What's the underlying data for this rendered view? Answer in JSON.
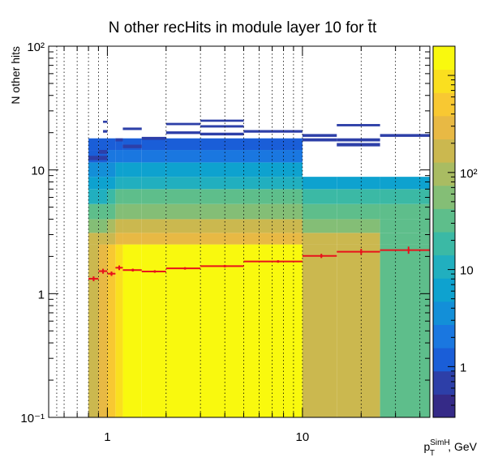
{
  "chart_data": {
    "type": "heatmap",
    "title": "N other recHits in module layer 10 for t̄t",
    "xlabel": "p_T^SimH, GeV",
    "ylabel": "N other hits",
    "x_scale": "log",
    "y_scale": "log",
    "z_scale": "log",
    "xlim": [
      0.5,
      45
    ],
    "ylim": [
      0.1,
      100
    ],
    "zlim": [
      0.3,
      2000
    ],
    "x_ticks": [
      {
        "value": 1,
        "label": "1"
      },
      {
        "value": 10,
        "label": "10"
      }
    ],
    "y_ticks": [
      {
        "value": 0.1,
        "label": "10⁻¹"
      },
      {
        "value": 1,
        "label": "1"
      },
      {
        "value": 10,
        "label": "10"
      },
      {
        "value": 100,
        "label": "10²"
      }
    ],
    "z_ticks": [
      {
        "value": 1,
        "label": "1"
      },
      {
        "value": 10,
        "label": "10"
      },
      {
        "value": 100,
        "label": "10²"
      }
    ],
    "x_gridlines": [
      0.55,
      0.6,
      0.7,
      0.8,
      0.9,
      1,
      2,
      3,
      4,
      5,
      6,
      7,
      8,
      9,
      10,
      20,
      30,
      40
    ],
    "x_bin_edges": [
      0.8,
      0.9,
      1.0,
      1.1,
      1.2,
      1.5,
      2.0,
      3.0,
      5.0,
      10.0,
      15.0,
      25.0,
      45.0
    ],
    "y_bands": [
      {
        "range": [
          0.1,
          2.5
        ],
        "z": [
          150,
          300,
          600,
          1000,
          1400,
          1500,
          1500,
          1500,
          1400,
          200,
          200,
          40
        ]
      },
      {
        "range": [
          2.5,
          3.1
        ],
        "z": [
          150,
          150,
          200,
          300,
          300,
          300,
          300,
          300,
          300,
          200,
          200,
          40
        ]
      },
      {
        "range": [
          3.1,
          4.0
        ],
        "z": [
          60,
          60,
          90,
          150,
          150,
          150,
          150,
          150,
          150,
          60,
          60,
          40
        ]
      },
      {
        "range": [
          4.0,
          5.3
        ],
        "z": [
          30,
          30,
          40,
          60,
          60,
          60,
          60,
          60,
          60,
          30,
          30,
          30
        ]
      },
      {
        "range": [
          5.3,
          7.0
        ],
        "z": [
          12,
          12,
          15,
          25,
          25,
          25,
          25,
          25,
          25,
          15,
          15,
          15
        ]
      },
      {
        "range": [
          7.0,
          8.8
        ],
        "z": [
          6,
          6,
          7,
          10,
          10,
          10,
          10,
          10,
          10,
          7,
          7,
          7
        ]
      },
      {
        "range": [
          8.8,
          11.5
        ],
        "z": [
          3,
          3,
          4,
          5,
          5,
          5,
          5,
          5,
          5,
          0,
          0,
          0
        ]
      },
      {
        "range": [
          11.5,
          14.5
        ],
        "z": [
          1.5,
          1.5,
          2,
          2.5,
          2.5,
          2.5,
          2.5,
          2.5,
          2.5,
          0,
          0,
          0
        ]
      },
      {
        "range": [
          14.5,
          18
        ],
        "z": [
          1,
          1,
          1.2,
          1.5,
          1.5,
          1.5,
          1.5,
          1.5,
          1.5,
          0,
          0,
          0
        ]
      }
    ],
    "sparse_bins": [
      {
        "x": [
          0.8,
          1.0
        ],
        "y": [
          12.0,
          13.0
        ],
        "z": 0.7
      },
      {
        "x": [
          0.9,
          1.0
        ],
        "y": [
          13.5,
          14.5
        ],
        "z": 0.7
      },
      {
        "x": [
          0.95,
          1.0
        ],
        "y": [
          24.0,
          25.0
        ],
        "z": 0.6
      },
      {
        "x": [
          0.95,
          1.0
        ],
        "y": [
          20.0,
          21.0
        ],
        "z": 0.6
      },
      {
        "x": [
          1.1,
          1.2
        ],
        "y": [
          17.0,
          18.0
        ],
        "z": 0.6
      },
      {
        "x": [
          1.2,
          1.5
        ],
        "y": [
          21.0,
          22.0
        ],
        "z": 0.6
      },
      {
        "x": [
          1.2,
          1.5
        ],
        "y": [
          15.0,
          16.0
        ],
        "z": 0.7
      },
      {
        "x": [
          1.5,
          2.0
        ],
        "y": [
          17.5,
          18.5
        ],
        "z": 0.6
      },
      {
        "x": [
          2.0,
          3.0
        ],
        "y": [
          23.0,
          24.0
        ],
        "z": 0.6
      },
      {
        "x": [
          2.0,
          3.0
        ],
        "y": [
          19.5,
          20.5
        ],
        "z": 0.7
      },
      {
        "x": [
          3.0,
          5.0
        ],
        "y": [
          24.5,
          25.5
        ],
        "z": 0.6
      },
      {
        "x": [
          3.0,
          5.0
        ],
        "y": [
          22.0,
          23.0
        ],
        "z": 0.6
      },
      {
        "x": [
          3.0,
          5.0
        ],
        "y": [
          19.0,
          20.0
        ],
        "z": 0.7
      },
      {
        "x": [
          5.0,
          10.0
        ],
        "y": [
          20.0,
          21.0
        ],
        "z": 0.6
      },
      {
        "x": [
          10.0,
          15.0
        ],
        "y": [
          18.5,
          19.5
        ],
        "z": 0.6
      },
      {
        "x": [
          10.0,
          15.0
        ],
        "y": [
          17.0,
          18.0
        ],
        "z": 0.6
      },
      {
        "x": [
          15.0,
          25.0
        ],
        "y": [
          22.5,
          23.5
        ],
        "z": 0.6
      },
      {
        "x": [
          15.0,
          25.0
        ],
        "y": [
          17.0,
          18.0
        ],
        "z": 0.6
      },
      {
        "x": [
          15.0,
          25.0
        ],
        "y": [
          15.5,
          16.5
        ],
        "z": 0.6
      },
      {
        "x": [
          25.0,
          45.0
        ],
        "y": [
          18.5,
          19.5
        ],
        "z": 0.6
      }
    ],
    "profile": {
      "name": "",
      "color": "#e8121b",
      "points": [
        {
          "x": 0.85,
          "y": 1.32,
          "xerr": [
            0.8,
            0.9
          ],
          "yerr": 0.06
        },
        {
          "x": 0.95,
          "y": 1.52,
          "xerr": [
            0.9,
            1.0
          ],
          "yerr": 0.07
        },
        {
          "x": 1.05,
          "y": 1.45,
          "xerr": [
            1.0,
            1.1
          ],
          "yerr": 0.06
        },
        {
          "x": 1.15,
          "y": 1.62,
          "xerr": [
            1.1,
            1.2
          ],
          "yerr": 0.07
        },
        {
          "x": 1.35,
          "y": 1.55,
          "xerr": [
            1.2,
            1.5
          ],
          "yerr": 0.04
        },
        {
          "x": 1.75,
          "y": 1.51,
          "xerr": [
            1.5,
            2.0
          ],
          "yerr": 0.03
        },
        {
          "x": 2.5,
          "y": 1.6,
          "xerr": [
            2.0,
            3.0
          ],
          "yerr": 0.03
        },
        {
          "x": 4.0,
          "y": 1.67,
          "xerr": [
            3.0,
            5.0
          ],
          "yerr": 0.03
        },
        {
          "x": 7.5,
          "y": 1.82,
          "xerr": [
            5.0,
            10.0
          ],
          "yerr": 0.03
        },
        {
          "x": 12.5,
          "y": 2.02,
          "xerr": [
            10.0,
            15.0
          ],
          "yerr": 0.08
        },
        {
          "x": 20.0,
          "y": 2.18,
          "xerr": [
            15.0,
            25.0
          ],
          "yerr": 0.12
        },
        {
          "x": 35.0,
          "y": 2.25,
          "xerr": [
            25.0,
            45.0
          ],
          "yerr": 0.15
        }
      ]
    },
    "palette": [
      "#352a87",
      "#2d3fa8",
      "#1a5ed8",
      "#1a77e0",
      "#138fd8",
      "#0ea2cf",
      "#21afbf",
      "#3bb9a5",
      "#5ebe8b",
      "#84be76",
      "#a9bc62",
      "#cbb84f",
      "#e8b944",
      "#f8c832",
      "#fadf1f",
      "#f9f90e"
    ],
    "grid": true,
    "legend": "colorbar right"
  }
}
